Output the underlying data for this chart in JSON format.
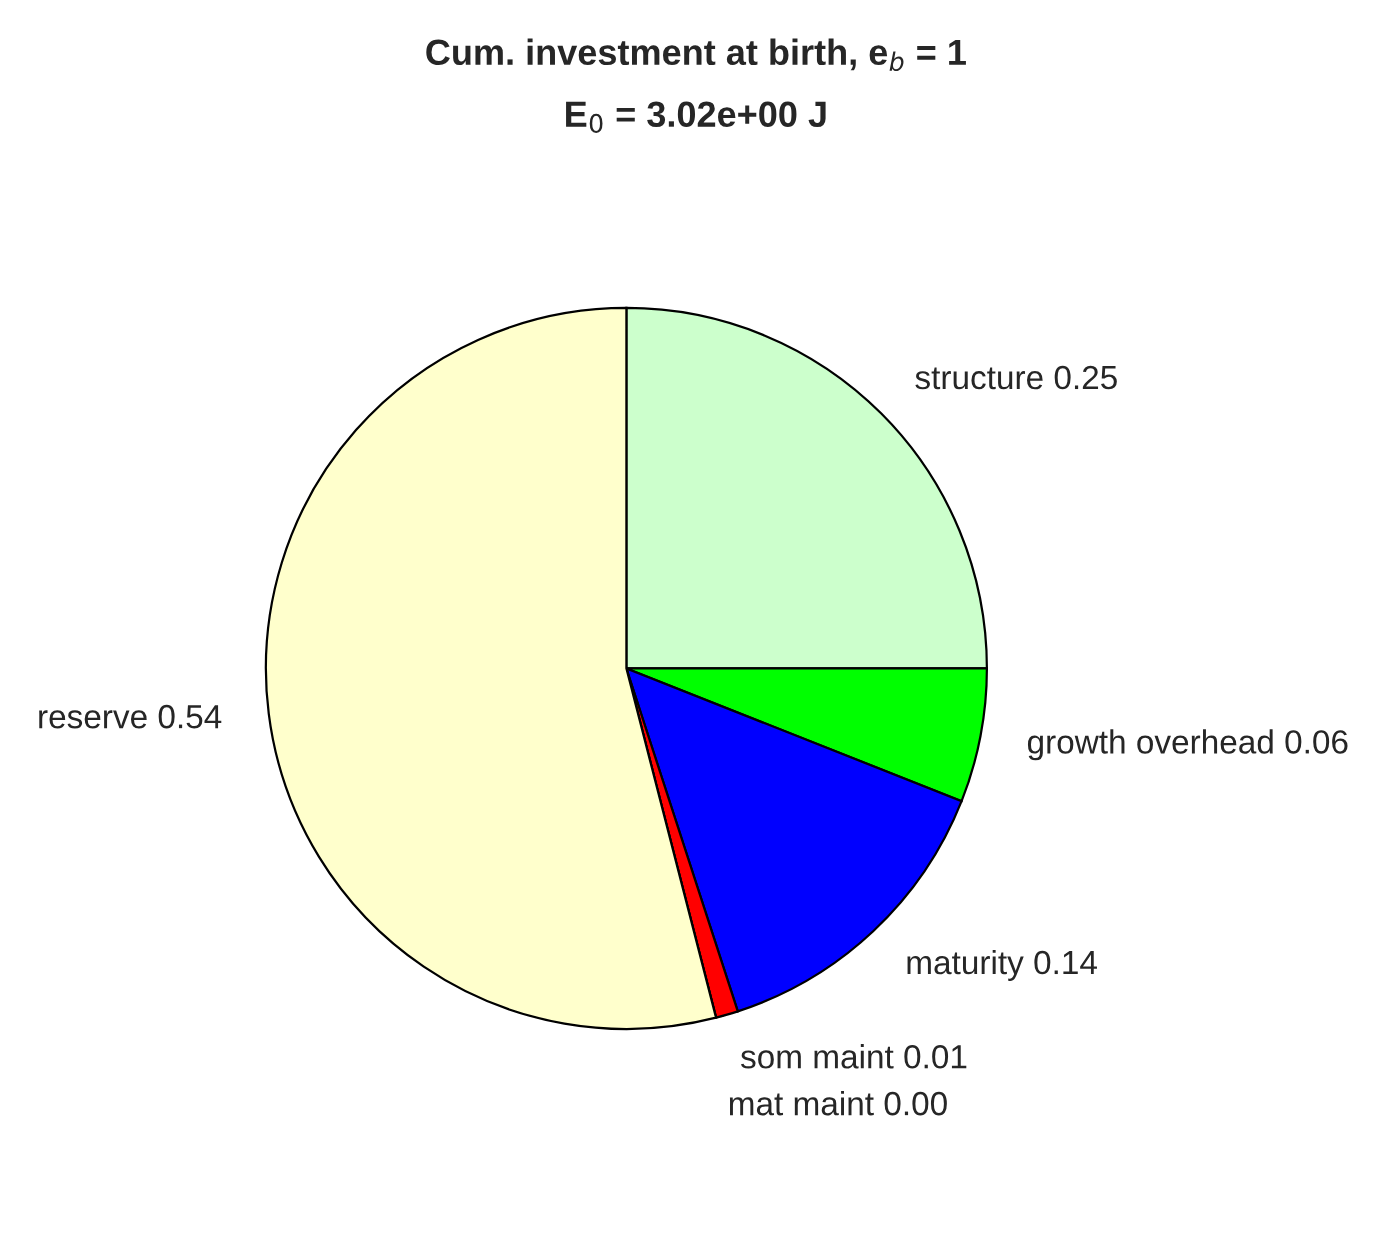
{
  "chart_data": {
    "type": "pie",
    "title": "Cum. investment at birth, e$_{b}$ = 1",
    "subtitle": "E$_{0}$ = 3.02e+00 J",
    "categories": [
      "structure 0.25",
      "growth overhead 0.06",
      "maturity 0.14",
      "som maint 0.01",
      "mat maint 0.00",
      "reserve 0.54"
    ],
    "values": [
      0.25,
      0.06,
      0.14,
      0.01,
      0.0,
      0.54
    ],
    "colors": [
      "#ccffcc",
      "#00ff00",
      "#0000ff",
      "#ff0000",
      "#ff00ff",
      "#ffffcc"
    ]
  }
}
